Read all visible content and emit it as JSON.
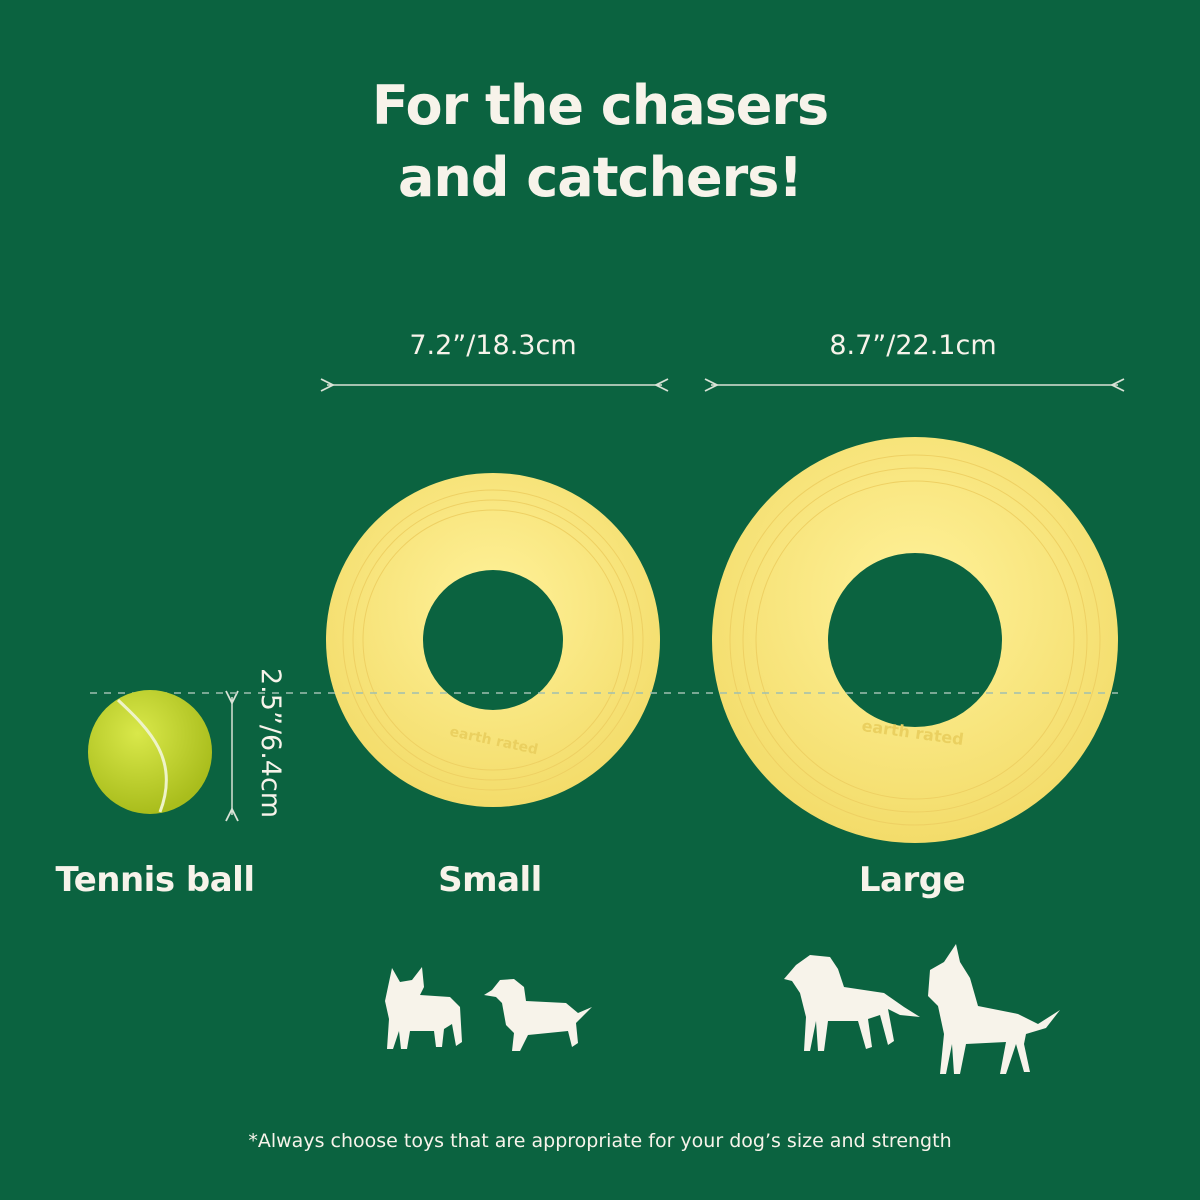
{
  "title_lines": [
    "For the chasers",
    "and catchers!"
  ],
  "dimensions": {
    "small": "7.2”/18.3cm",
    "large": "8.7”/22.1cm",
    "tennis_ball": "2.5”/6.4cm"
  },
  "labels": {
    "tennis_ball": "Tennis ball",
    "small": "Small",
    "large": "Large"
  },
  "logo_text": "earth rated",
  "footnote": "*Always choose toys that are appropriate for your dog’s size and strength",
  "colors": {
    "background": "#0b6340",
    "ring": "#f6e27a",
    "tennis_ball": "#c9dc2c",
    "text": "#f7f3ea"
  }
}
